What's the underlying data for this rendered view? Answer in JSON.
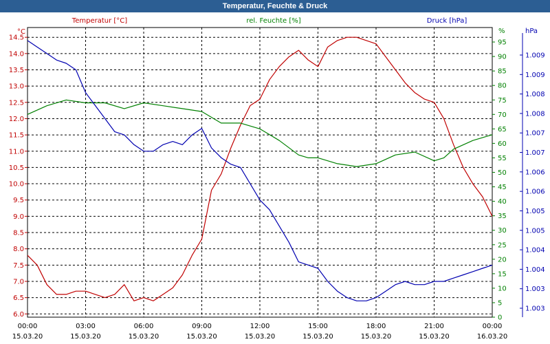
{
  "window": {
    "title": "Temperatur, Feuchte & Druck"
  },
  "colors": {
    "temperature": "#c00000",
    "humidity": "#008000",
    "pressure": "#0000b0",
    "grid": "#000000",
    "axis_text": "#000000"
  },
  "chart_data": {
    "type": "line",
    "title": "Temperatur, Feuchte & Druck",
    "x_ticks": [
      {
        "time": "00:00",
        "date": "15.03.20"
      },
      {
        "time": "03:00",
        "date": "15.03.20"
      },
      {
        "time": "06:00",
        "date": "15.03.20"
      },
      {
        "time": "09:00",
        "date": "15.03.20"
      },
      {
        "time": "12:00",
        "date": "15.03.20"
      },
      {
        "time": "15:00",
        "date": "15.03.20"
      },
      {
        "time": "18:00",
        "date": "15.03.20"
      },
      {
        "time": "21:00",
        "date": "15.03.20"
      },
      {
        "time": "00:00",
        "date": "16.03.20"
      }
    ],
    "xlim": [
      "15.03.20 00:00",
      "16.03.20 00:00"
    ],
    "grid": true,
    "axes": {
      "temperature": {
        "label": "Temperatur [°C]",
        "unit": "°C",
        "ylim": [
          5.9,
          14.8
        ],
        "ticks": [
          "6.0",
          "6.5",
          "7.0",
          "7.5",
          "8.0",
          "8.5",
          "9.0",
          "9.5",
          "10.0",
          "10.5",
          "11.0",
          "11.5",
          "12.0",
          "12.5",
          "13.0",
          "13.5",
          "14.0",
          "14.5"
        ]
      },
      "humidity": {
        "label": "rel. Feuchte [%]",
        "unit": "%",
        "ylim": [
          0,
          100
        ],
        "ticks": [
          "0",
          "5",
          "10",
          "15",
          "20",
          "25",
          "30",
          "35",
          "40",
          "45",
          "50",
          "55",
          "60",
          "65",
          "70",
          "75",
          "80",
          "85",
          "90",
          "95"
        ]
      },
      "pressure": {
        "label": "Druck [hPa]",
        "unit": "hPa",
        "ticks": [
          "1.003",
          "1.003",
          "1.004",
          "1.004",
          "1.005",
          "1.005",
          "1.006",
          "1.006",
          "1.007",
          "1.007",
          "1.008",
          "1.008",
          "1.009",
          "1.009"
        ]
      }
    },
    "series": [
      {
        "name": "Temperatur [°C]",
        "axis": "temperature",
        "x_hours": [
          0,
          0.5,
          1,
          1.5,
          2,
          2.5,
          3,
          3.5,
          4,
          4.5,
          5,
          5.5,
          6,
          6.5,
          7,
          7.5,
          8,
          8.5,
          9,
          9.5,
          10,
          10.5,
          11,
          11.5,
          12,
          12.5,
          13,
          13.5,
          14,
          14.5,
          15,
          15.5,
          16,
          16.5,
          17,
          17.5,
          18,
          18.5,
          19,
          19.5,
          20,
          20.5,
          21,
          21.5,
          22,
          22.5,
          23,
          23.5,
          24
        ],
        "values": [
          7.8,
          7.5,
          6.9,
          6.6,
          6.6,
          6.7,
          6.7,
          6.6,
          6.5,
          6.6,
          6.9,
          6.4,
          6.5,
          6.4,
          6.6,
          6.8,
          7.2,
          7.8,
          8.3,
          9.8,
          10.3,
          11.1,
          11.8,
          12.4,
          12.6,
          13.2,
          13.6,
          13.9,
          14.1,
          13.8,
          13.6,
          14.2,
          14.4,
          14.5,
          14.5,
          14.4,
          14.3,
          13.9,
          13.5,
          13.1,
          12.8,
          12.6,
          12.5,
          12.0,
          11.2,
          10.5,
          10.0,
          9.6,
          9.0
        ]
      },
      {
        "name": "rel. Feuchte [%]",
        "axis": "humidity",
        "x_hours": [
          0,
          1,
          2,
          3,
          4,
          5,
          6,
          7,
          8,
          9,
          10,
          11,
          12,
          13,
          14,
          14.5,
          15,
          16,
          17,
          18,
          19,
          20,
          21,
          21.5,
          22,
          23,
          24
        ],
        "values": [
          70,
          73,
          75,
          74,
          74,
          72,
          74,
          73,
          72,
          71,
          67,
          67,
          65,
          61,
          56,
          55,
          55,
          53,
          52,
          53,
          56,
          57,
          54,
          55,
          58,
          61,
          63
        ]
      },
      {
        "name": "Druck [hPa]",
        "axis": "pressure",
        "x_hours": [
          0,
          0.5,
          1,
          1.5,
          2,
          2.5,
          3,
          3.5,
          4,
          4.5,
          5,
          5.5,
          6,
          6.5,
          7,
          7.5,
          8,
          8.5,
          9,
          9.5,
          10,
          10.5,
          11,
          11.5,
          12,
          12.5,
          13,
          13.5,
          14,
          14.5,
          15,
          15.5,
          16,
          16.5,
          17,
          17.5,
          18,
          18.5,
          19,
          19.5,
          20,
          20.5,
          21,
          21.5,
          22,
          22.5,
          23,
          23.5,
          24
        ],
        "values": [
          14.4,
          14.2,
          14.0,
          13.8,
          13.7,
          13.5,
          12.8,
          12.4,
          12.0,
          11.6,
          11.5,
          11.2,
          11.0,
          11.0,
          11.2,
          11.3,
          11.2,
          11.5,
          11.7,
          11.1,
          10.8,
          10.6,
          10.5,
          10.0,
          9.5,
          9.2,
          8.7,
          8.2,
          7.6,
          7.5,
          7.4,
          7.0,
          6.7,
          6.5,
          6.4,
          6.4,
          6.5,
          6.7,
          6.9,
          7.0,
          6.9,
          6.9,
          7.0,
          7.0,
          7.1,
          7.2,
          7.3,
          7.4,
          7.5
        ]
      }
    ]
  }
}
